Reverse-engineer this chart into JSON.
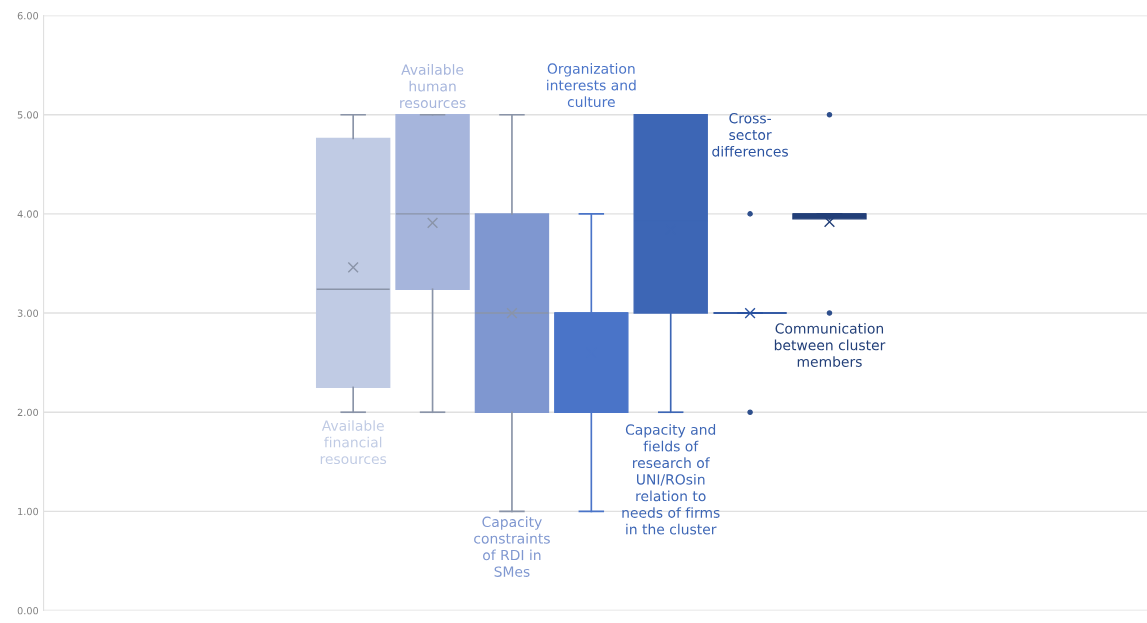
{
  "chart_data": {
    "type": "box",
    "categories": [
      null
    ],
    "series": [
      {
        "name": "Available\nfinancial\nresources",
        "color": "#c0cbe4",
        "boxes": [
          {
            "low": 2,
            "q1": 2.25,
            "median": 3.24,
            "q3": 4.76,
            "high": 5,
            "mean": 3.46
          }
        ]
      },
      {
        "name": "Available\nhuman\nresources",
        "color": "#a6b5dc",
        "boxes": [
          {
            "low": 2,
            "q1": 3.24,
            "median": 4,
            "q3": 5,
            "high": 5,
            "mean": 3.91
          }
        ]
      },
      {
        "name": "Capacity\nconstraints\nof RDI in\nSMes",
        "color": "#7f97d0",
        "boxes": [
          {
            "low": 1,
            "q1": 2,
            "median": 3,
            "q3": 4,
            "high": 5,
            "mean": 3.0
          }
        ]
      },
      {
        "name": "Organization\ninterests and\nculture",
        "color": "#4a74c8",
        "boxes": [
          {
            "low": 1,
            "q1": 2,
            "median": 3,
            "q3": 3,
            "high": 4,
            "mean": 2.6
          }
        ]
      },
      {
        "name": "Capacity and\nfields of\nresearch of\nUNI/ROsin\nrelation to\nneeds of firms\nin the cluster",
        "color": "#3d66b5",
        "boxes": [
          {
            "low": 2,
            "q1": 3,
            "median": 3.93,
            "q3": 5,
            "high": 5,
            "mean": 3.84
          }
        ]
      },
      {
        "name": "Cross-\nsector\ndifferences",
        "color": "#2a52a0",
        "boxes": [
          {
            "low": 3,
            "q1": 3,
            "median": 3,
            "q3": 3,
            "high": 3,
            "mean": 3,
            "outliers": [
              2,
              4
            ]
          }
        ]
      },
      {
        "name": "Communication\nbetween cluster\nmembers",
        "color": "#223f78",
        "boxes": [
          {
            "low": 4,
            "q1": 3.95,
            "median": 4,
            "q3": 4,
            "high": 4,
            "mean": 3.92,
            "outliers": [
              3,
              5
            ]
          }
        ]
      }
    ],
    "ylim": [
      0,
      6
    ],
    "yticks": [
      {
        "value": 0,
        "label": "0.00"
      },
      {
        "value": 1,
        "label": "1.00"
      },
      {
        "value": 2,
        "label": "2.00"
      },
      {
        "value": 3,
        "label": "3.00"
      },
      {
        "value": 4,
        "label": "4.00"
      },
      {
        "value": 5,
        "label": "5.00"
      },
      {
        "value": 6,
        "label": "6.00"
      }
    ],
    "grid": "y",
    "tick_labels": "y",
    "marker": "cross"
  }
}
